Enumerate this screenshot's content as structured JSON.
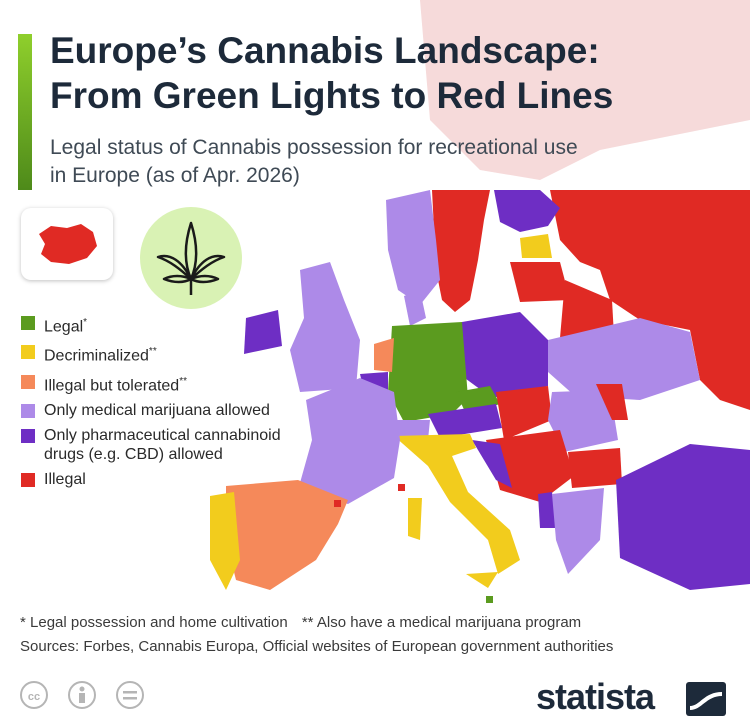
{
  "title_line1": "Europe’s Cannabis Landscape:",
  "title_line2": "From Green Lights to Red Lines",
  "subtitle_line1": "Legal status of Cannabis possession for recreational use",
  "subtitle_line2": "in Europe (as of Apr. 2026)",
  "legend": [
    {
      "label": "Legal",
      "mark": "*",
      "color": "#5b9b1f"
    },
    {
      "label": "Decriminalized",
      "mark": "**",
      "color": "#f2cc1d"
    },
    {
      "label": "Illegal but tolerated",
      "mark": "**",
      "color": "#f5895a"
    },
    {
      "label": "Only medical marijuana allowed",
      "mark": "",
      "color": "#ad8ae8"
    },
    {
      "label": "Only pharmaceutical cannabinoid drugs (e.g. CBD) allowed",
      "mark": "",
      "color": "#6e2ec4"
    },
    {
      "label": "Illegal",
      "mark": "",
      "color": "#e02a24"
    }
  ],
  "colors": {
    "legal": "#5b9b1f",
    "decriminalized": "#f2cc1d",
    "tolerated": "#f5895a",
    "medical": "#ad8ae8",
    "pharma": "#6e2ec4",
    "illegal": "#e02a24",
    "sea": "#ffffff",
    "background_land": "#f6dada",
    "brand": "#1d2a3a"
  },
  "footnote_legal": "* Legal possession and home cultivation",
  "footnote_decriminalized": "** Also have a medical marijuana program",
  "sources": "Sources: Forbes, Cannabis Europa, Official websites of European government authorities",
  "brand": "statista",
  "icons": [
    "cannabis-leaf-icon",
    "iceland-inset-icon",
    "cc-license-icon",
    "attribution-icon",
    "no-derivatives-icon",
    "statista-logo-icon"
  ]
}
